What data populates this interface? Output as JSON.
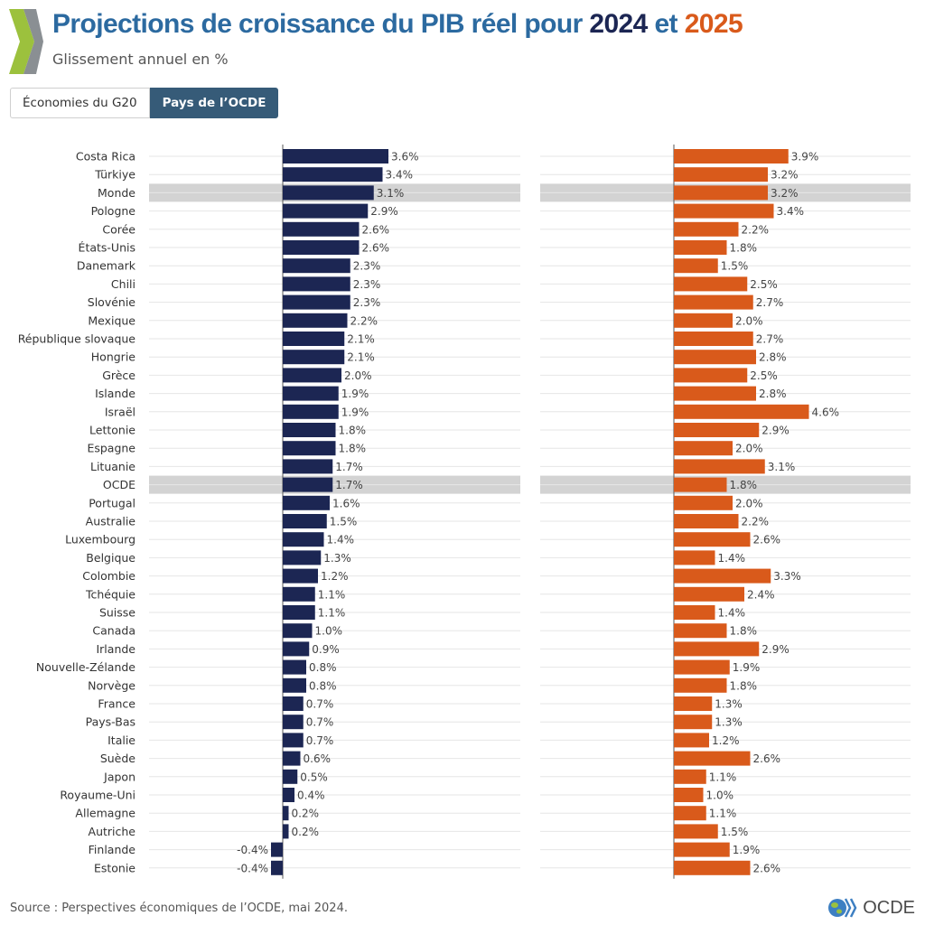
{
  "header": {
    "title_prefix": "Projections de croissance du PIB réel pour ",
    "year1": "2024",
    "title_joiner": " et ",
    "year2": "2025",
    "subtitle": "Glissement annuel en %"
  },
  "tabs": [
    {
      "label": "Économies du G20",
      "active": false
    },
    {
      "label": "Pays de l’OCDE",
      "active": true
    }
  ],
  "footer": {
    "source": "Source : Perspectives économiques de l’OCDE, mai 2024.",
    "brand": "OCDE"
  },
  "colors": {
    "series_2024": "#1c2653",
    "series_2025": "#d95a1b",
    "highlight_row": "#d3d3d3",
    "title": "#2c6aa0"
  },
  "chart_data": {
    "type": "bar",
    "orientation": "horizontal",
    "title": "Projections de croissance du PIB réel pour 2024 et 2025",
    "subtitle": "Glissement annuel en %",
    "unit": "%",
    "categories": [
      "Costa Rica",
      "Türkiye",
      "Monde",
      "Pologne",
      "Corée",
      "États-Unis",
      "Danemark",
      "Chili",
      "Slovénie",
      "Mexique",
      "République slovaque",
      "Hongrie",
      "Grèce",
      "Islande",
      "Israël",
      "Lettonie",
      "Espagne",
      "Lituanie",
      "OCDE",
      "Portugal",
      "Australie",
      "Luxembourg",
      "Belgique",
      "Colombie",
      "Tchéquie",
      "Suisse",
      "Canada",
      "Irlande",
      "Nouvelle-Zélande",
      "Norvège",
      "France",
      "Pays-Bas",
      "Italie",
      "Suède",
      "Japon",
      "Royaume-Uni",
      "Allemagne",
      "Autriche",
      "Finlande",
      "Estonie"
    ],
    "highlighted": [
      "Monde",
      "OCDE"
    ],
    "series": [
      {
        "name": "2024",
        "color": "#1c2653",
        "values": [
          3.6,
          3.4,
          3.1,
          2.9,
          2.6,
          2.6,
          2.3,
          2.3,
          2.3,
          2.2,
          2.1,
          2.1,
          2.0,
          1.9,
          1.9,
          1.8,
          1.8,
          1.7,
          1.7,
          1.6,
          1.5,
          1.4,
          1.3,
          1.2,
          1.1,
          1.1,
          1.0,
          0.9,
          0.8,
          0.8,
          0.7,
          0.7,
          0.7,
          0.6,
          0.5,
          0.4,
          0.2,
          0.2,
          -0.4,
          -0.4
        ]
      },
      {
        "name": "2025",
        "color": "#d95a1b",
        "values": [
          3.9,
          3.2,
          3.2,
          3.4,
          2.2,
          1.8,
          1.5,
          2.5,
          2.7,
          2.0,
          2.7,
          2.8,
          2.5,
          2.8,
          4.6,
          2.9,
          2.0,
          3.1,
          1.8,
          2.0,
          2.2,
          2.6,
          1.4,
          3.3,
          2.4,
          1.4,
          1.8,
          2.9,
          1.9,
          1.8,
          1.3,
          1.3,
          1.2,
          2.6,
          1.1,
          1.0,
          1.1,
          1.5,
          1.9,
          2.6
        ]
      }
    ],
    "label_suffix": "%"
  }
}
